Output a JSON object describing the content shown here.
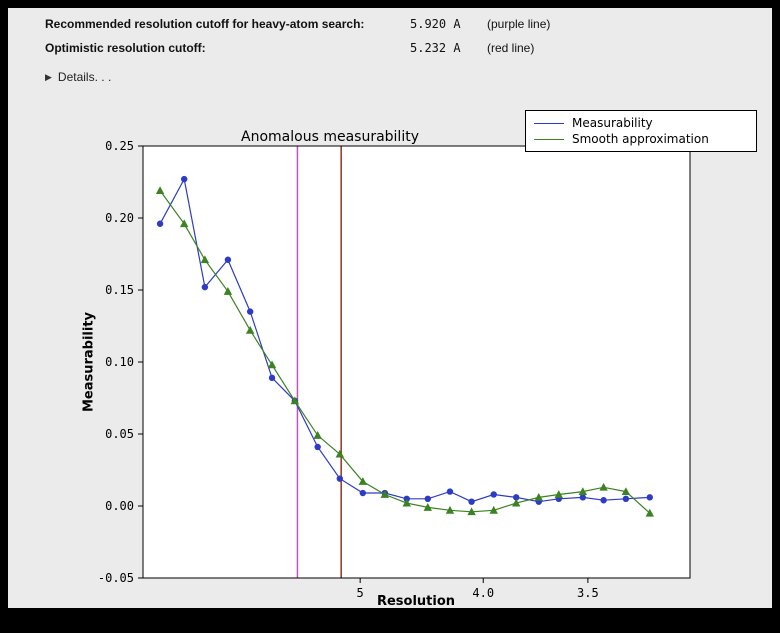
{
  "header": {
    "rows": [
      {
        "label": "Recommended resolution cutoff for heavy-atom search:",
        "value": "5.920 A",
        "note": "(purple line)"
      },
      {
        "label": "Optimistic resolution cutoff:",
        "value": "5.232 A",
        "note": "(red line)"
      }
    ],
    "details_label": "Details. . ."
  },
  "chart_data": {
    "type": "line",
    "title": "Anomalous measurability",
    "xlabel": "Resolution",
    "ylabel": "Measurability",
    "x_scale": "inverse_d_squared",
    "x_s2_range": [
      0.0003,
      0.1003
    ],
    "ylim": [
      -0.05,
      0.25
    ],
    "y_ticks": [
      0.25,
      0.2,
      0.15,
      0.1,
      0.05,
      0.0,
      -0.05
    ],
    "x_ticks": [
      {
        "d": 5.0,
        "label": "5"
      },
      {
        "d": 4.0,
        "label": "4.0"
      },
      {
        "d": 3.5,
        "label": "3.5"
      }
    ],
    "grid": false,
    "legend_position": "top-right-outside",
    "resolution_shells_d": [
      17.1,
      11.3,
      9.28,
      7.95,
      7.09,
      6.47,
      5.97,
      5.57,
      5.25,
      4.97,
      4.74,
      4.54,
      4.37,
      4.21,
      4.07,
      3.94,
      3.82,
      3.71,
      3.62,
      3.52,
      3.44,
      3.36,
      3.28
    ],
    "series": [
      {
        "name": "Measurability",
        "color": "#2d3bc6",
        "marker": "circle",
        "values": [
          0.196,
          0.227,
          0.152,
          0.171,
          0.135,
          0.089,
          0.073,
          0.041,
          0.019,
          0.009,
          0.009,
          0.005,
          0.005,
          0.01,
          0.003,
          0.008,
          0.006,
          0.003,
          0.005,
          0.006,
          0.004,
          0.005,
          0.006
        ]
      },
      {
        "name": "Smooth approximation",
        "color": "#3b8222",
        "marker": "triangle",
        "values": [
          0.219,
          0.196,
          0.171,
          0.149,
          0.122,
          0.098,
          0.073,
          0.049,
          0.036,
          0.017,
          0.008,
          0.002,
          -0.001,
          -0.003,
          -0.004,
          -0.003,
          0.002,
          0.006,
          0.008,
          0.01,
          0.013,
          0.01,
          -0.005
        ]
      }
    ],
    "vlines": [
      {
        "name": "recommended-cutoff-line",
        "d": 5.92,
        "color": "#bf52bf"
      },
      {
        "name": "optimistic-cutoff-line",
        "d": 5.232,
        "color": "#993322"
      }
    ],
    "colors": {
      "plot_background": "#ffffff",
      "figure_background": "#ebebeb",
      "axis": "#000000"
    }
  }
}
